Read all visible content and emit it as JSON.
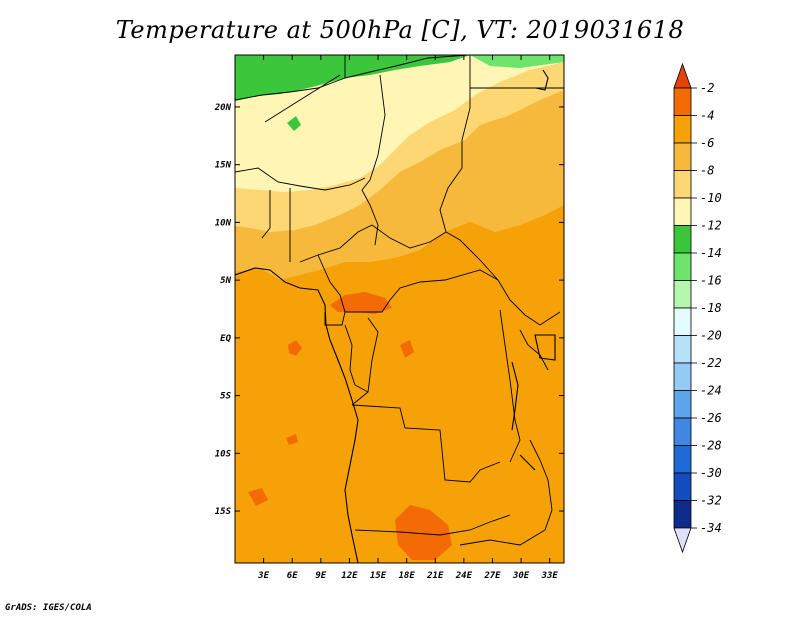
{
  "title": "Temperature at 500hPa [C], VT: 2019031618",
  "credit": "GrADS: IGES/COLA",
  "map": {
    "lat_range": [
      -19.5,
      24.5
    ],
    "lon_range": [
      0,
      34.5
    ],
    "lat_labels": [
      "20N",
      "15N",
      "10N",
      "5N",
      "EQ",
      "5S",
      "10S",
      "15S"
    ],
    "lat_values": [
      20,
      15,
      10,
      5,
      0,
      -5,
      -10,
      -15
    ],
    "lon_labels": [
      "3E",
      "6E",
      "9E",
      "12E",
      "15E",
      "18E",
      "21E",
      "24E",
      "27E",
      "30E",
      "33E"
    ],
    "lon_values": [
      3,
      6,
      9,
      12,
      15,
      18,
      21,
      24,
      27,
      30,
      33
    ]
  },
  "colorbar": {
    "labels": [
      "-2",
      "-4",
      "-6",
      "-8",
      "-10",
      "-12",
      "-14",
      "-16",
      "-18",
      "-20",
      "-22",
      "-24",
      "-26",
      "-28",
      "-30",
      "-32",
      "-34"
    ],
    "colors": [
      "#e8420a",
      "#f46a05",
      "#f6a107",
      "#f7b93c",
      "#fcd773",
      "#fff5b5",
      "#3cc63c",
      "#6de56b",
      "#b5f8ad",
      "#e2fcff",
      "#b5e2f8",
      "#94cbf5",
      "#5ea6ec",
      "#3f87e1",
      "#206ad6",
      "#134dbd",
      "#0f2c8a",
      "#0a0a6a"
    ],
    "top_cap": "#e8420a",
    "bottom_cap": "#e0e0f8"
  }
}
